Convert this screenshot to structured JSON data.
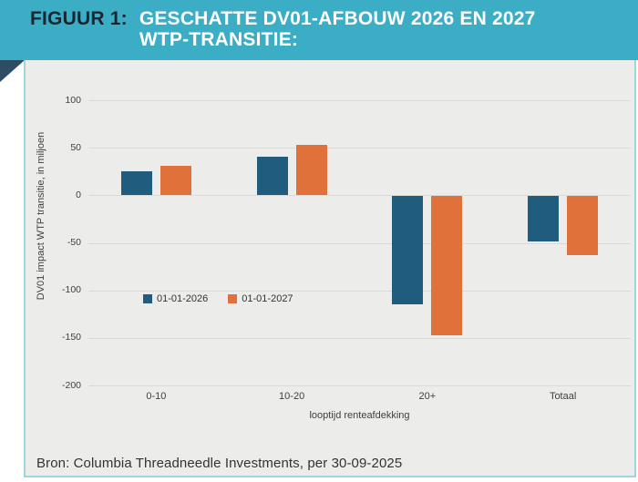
{
  "header": {
    "figure_label": "FIGUUR 1:",
    "title_line1": "GESCHATTE DV01-AFBOUW 2026 EN 2027",
    "title_line2": "WTP-TRANSITIE:"
  },
  "chart_data": {
    "type": "bar",
    "categories": [
      "0-10",
      "10-20",
      "20+",
      "Totaal"
    ],
    "series": [
      {
        "name": "01-01-2026",
        "color": "#1f5c7d",
        "values": [
          25,
          41,
          -114,
          -48
        ]
      },
      {
        "name": "01-01-2027",
        "color": "#e0713a",
        "values": [
          31,
          53,
          -146,
          -62
        ]
      }
    ],
    "xlabel": "looptijd renteafdekking",
    "ylabel": "DV01 impact WTP  transitie, in miljoen",
    "ylim": [
      -200,
      100
    ],
    "ytick_step": 50,
    "grid": true,
    "legend_position": "inside-bottom-left"
  },
  "source": {
    "text": "Bron: Columbia Threadneedle Investments, per 30-09-2025"
  },
  "colors": {
    "header_bg": "#3badc5",
    "header_label": "#1a2530",
    "header_title": "#ffffff",
    "fold": "#2d4d64",
    "panel_bg": "#ececea",
    "panel_border": "#9ed6e0",
    "gridline": "#d9d9d6",
    "tick_text": "#404040",
    "series_2026": "#1f5c7d",
    "series_2027": "#e0713a"
  }
}
